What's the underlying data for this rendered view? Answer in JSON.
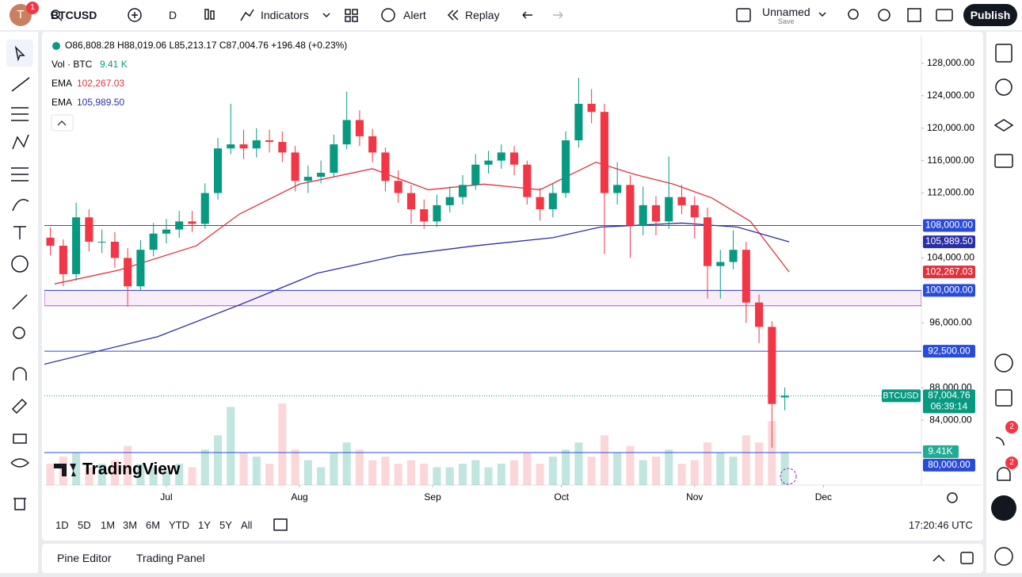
{
  "top_bar": {
    "avatar": "T",
    "badge": "1",
    "symbol": "BTCUSD",
    "interval": "D",
    "indicators": "Indicators",
    "alert": "Alert",
    "replay": "Replay",
    "layout_name": "Unnamed",
    "save": "Save",
    "publish": "Publish"
  },
  "legend": {
    "ohlc": "O86,808.28 H88,019.06 L85,213.17 C87,004.76 +196.48 (+0.23%)",
    "vol_label": "Vol · BTC",
    "vol_value": "9.41 K"
  },
  "chart_data": {
    "type": "candlestick",
    "watermark": "TradingView",
    "symbol_tag": "BTCUSD",
    "last_label": "87,004.76",
    "countdown": "06:39:14",
    "volume_label": "9.41K",
    "up_color": "#089981",
    "down_color": "#f23645",
    "grid": false,
    "x": [
      -27,
      -24,
      -21,
      -18,
      -15,
      -12,
      -9,
      -6,
      -3,
      0,
      3,
      6,
      9,
      12,
      15,
      18,
      21,
      24,
      27,
      30,
      33,
      36,
      39,
      42,
      45,
      48,
      51,
      54,
      57,
      60,
      63,
      66,
      69,
      72,
      75,
      78,
      81,
      84,
      87,
      90,
      93,
      96,
      99,
      102,
      105,
      108,
      111,
      114,
      117,
      120,
      123,
      126,
      129,
      132,
      135,
      138,
      141,
      144
    ],
    "open": [
      106500,
      105500,
      102000,
      109000,
      106000,
      106000,
      104000,
      100500,
      105000,
      107000,
      107500,
      108500,
      108200,
      112000,
      117500,
      118000,
      117500,
      118500,
      118300,
      117000,
      113500,
      114000,
      114500,
      118000,
      121000,
      119000,
      117000,
      113500,
      112000,
      110000,
      108500,
      110500,
      111500,
      113000,
      115500,
      116000,
      117000,
      115500,
      111500,
      110000,
      112000,
      118500,
      123000,
      122000,
      112000,
      113000,
      108000,
      110500,
      108500,
      111500,
      110500,
      109000,
      103000,
      103500,
      105000,
      98500,
      95500,
      86808.28
    ],
    "high": [
      107800,
      106300,
      110800,
      110000,
      107500,
      107200,
      105200,
      106200,
      108300,
      108800,
      109800,
      109800,
      113200,
      118800,
      123000,
      119800,
      120000,
      119800,
      119600,
      117800,
      115400,
      116000,
      119200,
      124500,
      122200,
      119900,
      117600,
      114800,
      113000,
      111200,
      111800,
      112800,
      114200,
      116800,
      117200,
      118000,
      117800,
      116000,
      112600,
      113200,
      119600,
      126200,
      124800,
      123000,
      115800,
      114200,
      112800,
      111600,
      116500,
      113000,
      111600,
      110200,
      105000,
      107400,
      106000,
      99500,
      96200,
      88019.06
    ],
    "low": [
      104300,
      100500,
      101200,
      104800,
      104600,
      102800,
      98000,
      100000,
      104200,
      105800,
      106500,
      107200,
      107600,
      111200,
      116800,
      116200,
      116400,
      117000,
      115800,
      112200,
      112000,
      113200,
      114000,
      117400,
      117800,
      115800,
      112200,
      110800,
      108200,
      107600,
      107800,
      109600,
      110600,
      112400,
      114400,
      115000,
      114200,
      110600,
      108600,
      109000,
      111400,
      117600,
      120600,
      104500,
      110600,
      104000,
      106800,
      106800,
      107600,
      109400,
      106400,
      99000,
      99000,
      102600,
      96000,
      93500,
      80600,
      85213.17
    ],
    "close": [
      105500,
      102000,
      109000,
      106000,
      106000,
      104000,
      100500,
      105000,
      107000,
      107500,
      108500,
      108200,
      112000,
      117500,
      118000,
      117500,
      118500,
      118300,
      117000,
      113500,
      114000,
      114500,
      118000,
      121000,
      119000,
      117000,
      113500,
      112000,
      110000,
      108500,
      110500,
      111500,
      113000,
      115500,
      116000,
      117000,
      115500,
      111500,
      110000,
      112000,
      118500,
      123000,
      122000,
      112000,
      113000,
      108000,
      110500,
      108500,
      111500,
      110500,
      109000,
      103000,
      103500,
      105000,
      98500,
      95500,
      86000,
      87004.76
    ],
    "volume": [
      6,
      8,
      9,
      5,
      6,
      7,
      11,
      6,
      5,
      4,
      6,
      5,
      10,
      14,
      22,
      9,
      8,
      6,
      23,
      10,
      7,
      5,
      9,
      12,
      10,
      7,
      8,
      6,
      7,
      6,
      5,
      5,
      6,
      7,
      5,
      6,
      7,
      9,
      6,
      8,
      10,
      12,
      8,
      14,
      9,
      11,
      7,
      8,
      10,
      6,
      7,
      12,
      9,
      8,
      14,
      12,
      18,
      9.41
    ],
    "vlim": [
      0,
      25
    ],
    "series": [
      {
        "name": "EMA",
        "color": "#e0323c",
        "value_label": "102,267.03",
        "x": [
          -26,
          -11,
          7,
          17,
          31,
          48,
          61,
          74,
          87,
          100,
          109,
          118,
          127,
          136,
          145
        ],
        "values": [
          100800,
          102500,
          105500,
          109400,
          113100,
          115000,
          112400,
          113100,
          112400,
          115800,
          114300,
          113100,
          111400,
          108500,
          102267.03
        ]
      },
      {
        "name": "EMA",
        "color": "#2a2fa8",
        "value_label": "105,989.50",
        "x": [
          -28.4,
          -2,
          17,
          35,
          54,
          72,
          90,
          101,
          120,
          133,
          145
        ],
        "values": [
          90900,
          94300,
          98200,
          102100,
          104300,
          105500,
          106500,
          107800,
          108300,
          107800,
          105989.5
        ]
      }
    ],
    "levels": [
      {
        "value": 108000,
        "label": "108,000.00"
      },
      {
        "value": 100000,
        "label": "100,000.00"
      },
      {
        "value": 92500,
        "label": "92,500.00"
      },
      {
        "value": 80000,
        "label": "80,000.00"
      }
    ],
    "level_color": "#2a4bd7",
    "zone": [
      98100,
      100000
    ],
    "xlim": [
      -28.4,
      175.8
    ],
    "xticks": [
      {
        "value": 0,
        "label": "Jul"
      },
      {
        "value": 31,
        "label": "Aug"
      },
      {
        "value": 62,
        "label": "Sep"
      },
      {
        "value": 92,
        "label": "Oct"
      },
      {
        "value": 123,
        "label": "Nov"
      },
      {
        "value": 153,
        "label": "Dec"
      }
    ],
    "ylim": [
      76000,
      131400
    ],
    "yticks": [
      {
        "value": 84000,
        "label": "84,000.00"
      },
      {
        "value": 88000,
        "label": "88,000.00"
      },
      {
        "value": 96000,
        "label": "96,000.00"
      },
      {
        "value": 104000,
        "label": "104,000.00"
      },
      {
        "value": 112000,
        "label": "112,000.00"
      },
      {
        "value": 116000,
        "label": "116,000.00"
      },
      {
        "value": 120000,
        "label": "120,000.00"
      },
      {
        "value": 124000,
        "label": "124,000.00"
      },
      {
        "value": 128000,
        "label": "128,000.00"
      }
    ]
  },
  "bottom": {
    "timeframes": [
      "1D",
      "5D",
      "1M",
      "3M",
      "6M",
      "YTD",
      "1Y",
      "5Y",
      "All"
    ],
    "clock": "17:20:46 UTC",
    "panels": [
      "Pine Editor",
      "Trading Panel"
    ]
  },
  "sidebar": {
    "badges": [
      "2",
      "2"
    ]
  }
}
